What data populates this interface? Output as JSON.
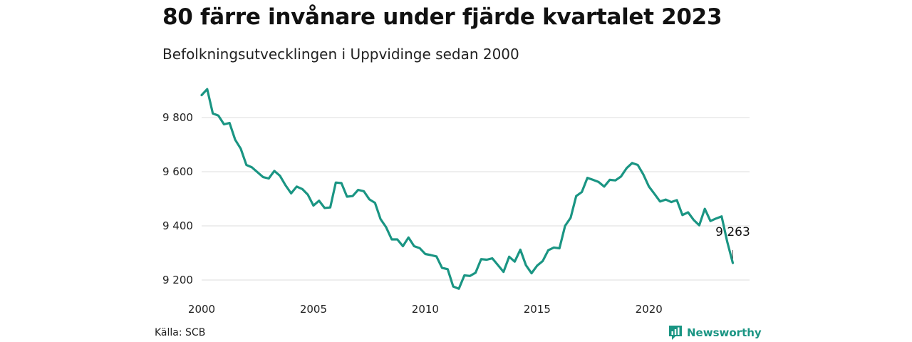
{
  "colors": {
    "line": "#1a9583",
    "grid": "#dddddd",
    "text": "#222222",
    "brand": "#1a9583"
  },
  "header": {
    "title": "80 färre invånare under fjärde kvartalet 2023",
    "subtitle": "Befolkningsutvecklingen i Uppvidinge sedan 2000"
  },
  "footer": {
    "source": "Källa: SCB",
    "brand_name": "Newsworthy",
    "brand_icon": "newsworthy-logo-icon"
  },
  "chart_data": {
    "type": "line",
    "title": "80 färre invånare under fjärde kvartalet 2023",
    "subtitle": "Befolkningsutvecklingen i Uppvidinge sedan 2000",
    "xlabel": "",
    "ylabel": "",
    "xlim": [
      2000,
      2024.5
    ],
    "ylim": [
      9150,
      9950
    ],
    "x_ticks": [
      2000,
      2005,
      2010,
      2015,
      2020
    ],
    "x_tick_labels": [
      "2000",
      "2005",
      "2010",
      "2015",
      "2020"
    ],
    "y_ticks": [
      9200,
      9400,
      9600,
      9800
    ],
    "y_tick_labels": [
      "9 200",
      "9 400",
      "9 600",
      "9 800"
    ],
    "grid": "horizontal",
    "legend": "none",
    "annotation": {
      "x": 2023.75,
      "y": 9263,
      "text": "9 263"
    },
    "series": [
      {
        "x": [
          2000,
          2000.25,
          2000.5,
          2000.75,
          2001,
          2001.25,
          2001.5,
          2001.75,
          2002,
          2002.25,
          2002.5,
          2002.75,
          2003,
          2003.25,
          2003.5,
          2003.75,
          2004,
          2004.25,
          2004.5,
          2004.75,
          2005,
          2005.25,
          2005.5,
          2005.75,
          2006,
          2006.25,
          2006.5,
          2006.75,
          2007,
          2007.25,
          2007.5,
          2007.75,
          2008,
          2008.25,
          2008.5,
          2008.75,
          2009,
          2009.25,
          2009.5,
          2009.75,
          2010,
          2010.25,
          2010.5,
          2010.75,
          2011,
          2011.25,
          2011.5,
          2011.75,
          2012,
          2012.25,
          2012.5,
          2012.75,
          2013,
          2013.25,
          2013.5,
          2013.75,
          2014,
          2014.25,
          2014.5,
          2014.75,
          2015,
          2015.25,
          2015.5,
          2015.75,
          2016,
          2016.25,
          2016.5,
          2016.75,
          2017,
          2017.25,
          2017.5,
          2017.75,
          2018,
          2018.25,
          2018.5,
          2018.75,
          2019,
          2019.25,
          2019.5,
          2019.75,
          2020,
          2020.25,
          2020.5,
          2020.75,
          2021,
          2021.25,
          2021.5,
          2021.75,
          2022,
          2022.25,
          2022.5,
          2022.75,
          2023,
          2023.25,
          2023.5,
          2023.75
        ],
        "y": [
          9883,
          9905,
          9815,
          9807,
          9775,
          9780,
          9718,
          9685,
          9625,
          9616,
          9598,
          9580,
          9575,
          9603,
          9585,
          9550,
          9520,
          9545,
          9536,
          9515,
          9475,
          9493,
          9466,
          9468,
          9560,
          9558,
          9508,
          9510,
          9533,
          9528,
          9498,
          9485,
          9425,
          9395,
          9350,
          9350,
          9325,
          9357,
          9325,
          9318,
          9296,
          9292,
          9287,
          9245,
          9240,
          9176,
          9168,
          9217,
          9215,
          9227,
          9277,
          9275,
          9280,
          9255,
          9230,
          9286,
          9268,
          9312,
          9255,
          9225,
          9253,
          9270,
          9310,
          9320,
          9317,
          9400,
          9430,
          9510,
          9525,
          9577,
          9570,
          9562,
          9545,
          9570,
          9568,
          9582,
          9613,
          9632,
          9625,
          9590,
          9545,
          9518,
          9490,
          9497,
          9488,
          9495,
          9440,
          9450,
          9422,
          9402,
          9463,
          9418,
          9427,
          9435,
          9342,
          9263
        ]
      }
    ]
  }
}
